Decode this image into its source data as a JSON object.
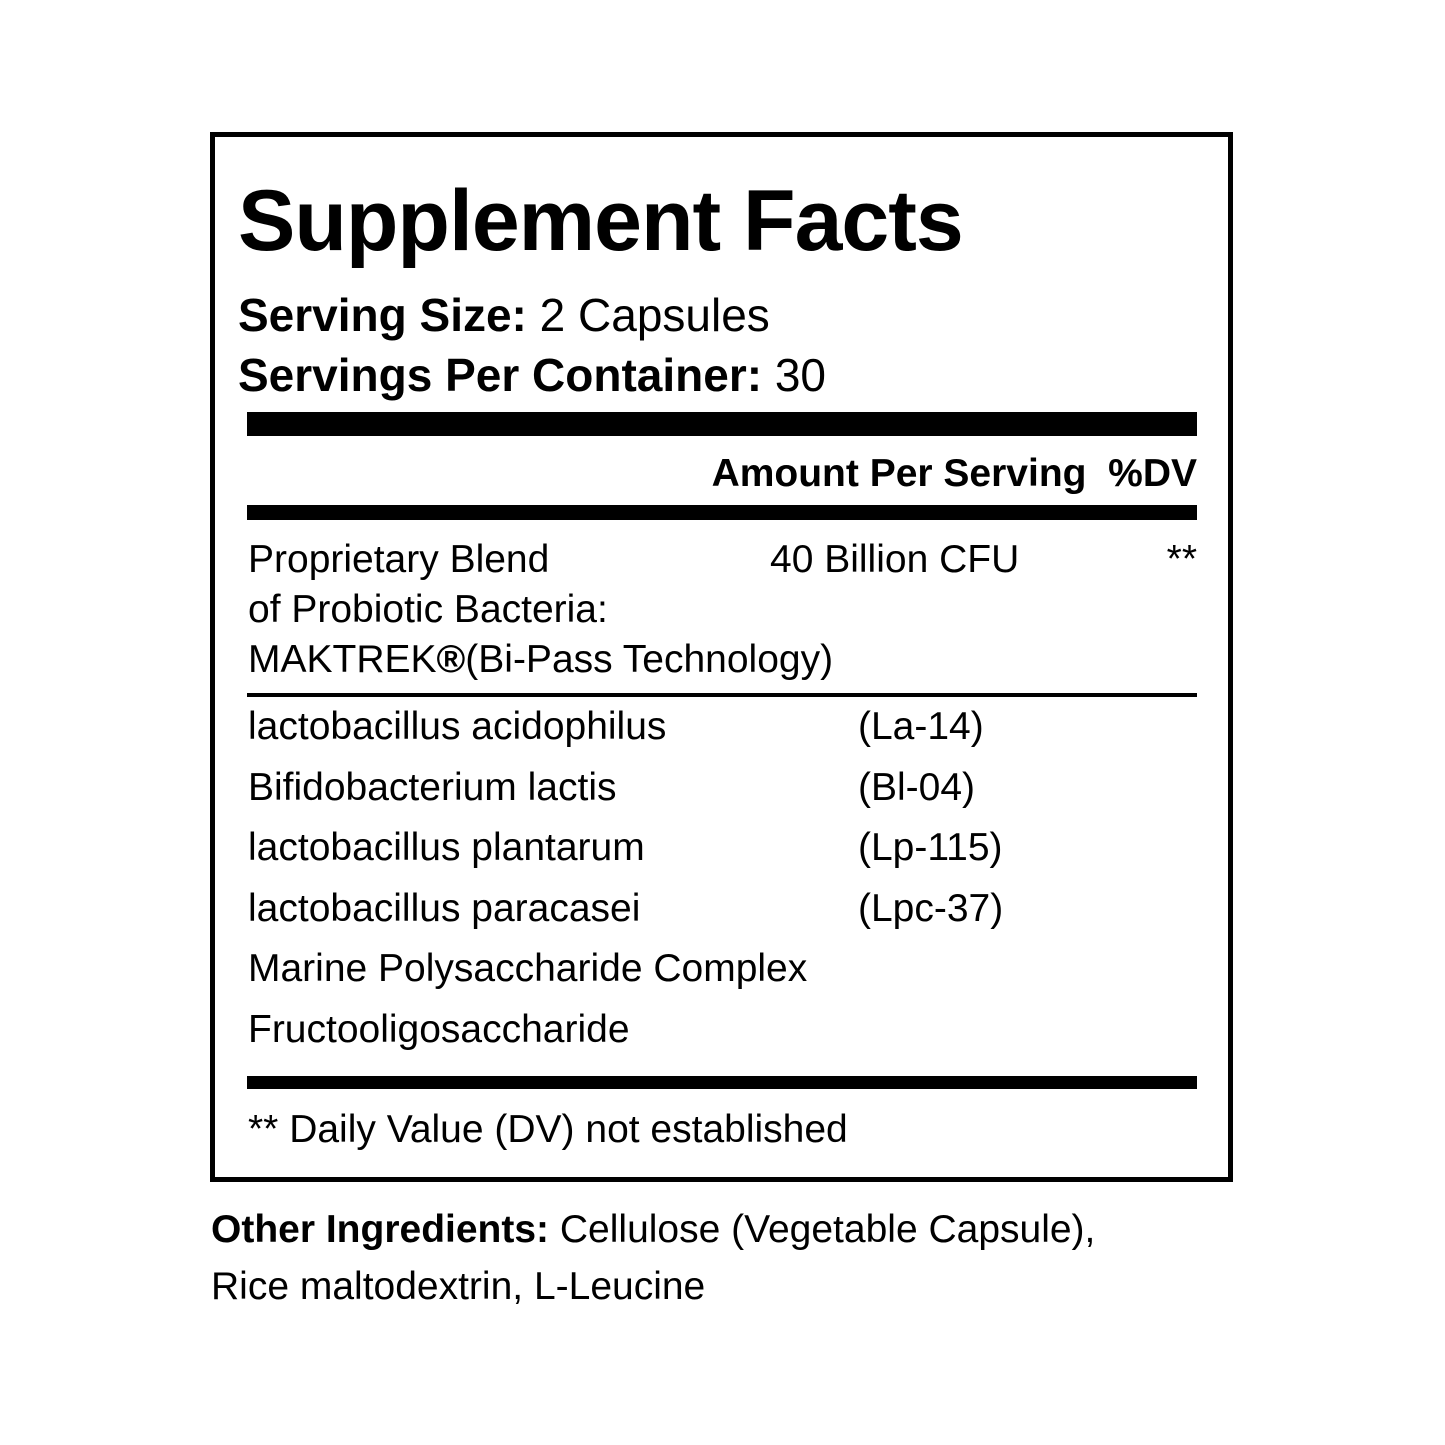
{
  "title": "Supplement Facts",
  "serving": {
    "size_label": "Serving Size:",
    "size_value": "2 Capsules",
    "per_container_label": "Servings Per Container:",
    "per_container_value": "30"
  },
  "header": {
    "amount_label": "Amount Per Serving",
    "dv_label": "%DV"
  },
  "blend": {
    "lines": [
      "Proprietary Blend",
      "of Probiotic Bacteria:",
      "MAKTREK",
      "(Bi-Pass Technology)"
    ],
    "registered_mark": "®",
    "amount": "40 Billion CFU",
    "dv": "**"
  },
  "ingredients": [
    {
      "name": "lactobacillus acidophilus",
      "strain": "(La-14)"
    },
    {
      "name": "Bifidobacterium lactis",
      "strain": "(Bl-04)"
    },
    {
      "name": "lactobacillus plantarum",
      "strain": "(Lp-115)"
    },
    {
      "name": "lactobacillus paracasei",
      "strain": "(Lpc-37)"
    },
    {
      "name": "Marine Polysaccharide Complex",
      "strain": ""
    },
    {
      "name": "Fructooligosaccharide",
      "strain": ""
    }
  ],
  "footnote": "** Daily Value (DV) not established",
  "other_ingredients": {
    "label": "Other Ingredients:",
    "line1": "Cellulose (Vegetable Capsule),",
    "line2": "Rice maltodextrin, L-Leucine"
  }
}
